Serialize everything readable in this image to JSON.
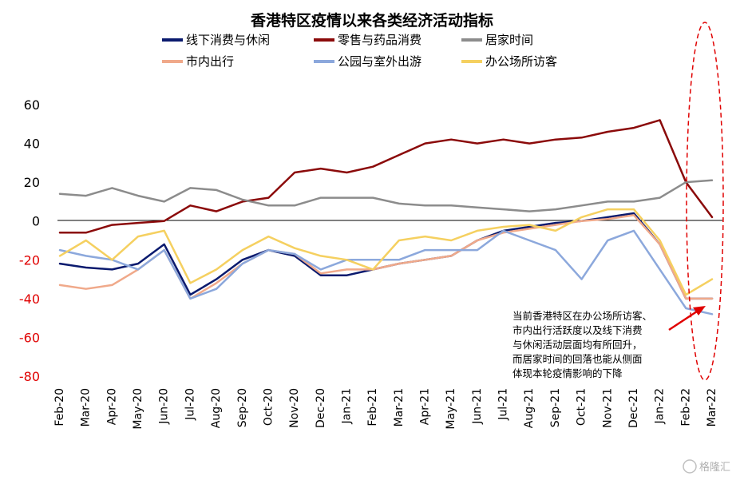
{
  "chart_data": {
    "type": "line",
    "title": "香港特区疫情以来各类经济活动指标",
    "ylim": [
      -80,
      60
    ],
    "yticks": [
      60,
      40,
      20,
      0,
      -20,
      -40,
      -60,
      -80
    ],
    "xticks": [
      "Feb-20",
      "Mar-20",
      "Apr-20",
      "May-20",
      "Jun-20",
      "Jul-20",
      "Aug-20",
      "Sep-20",
      "Oct-20",
      "Nov-20",
      "Dec-20",
      "Jan-21",
      "Feb-21",
      "Mar-21",
      "Apr-21",
      "May-21",
      "Jun-21",
      "Jul-21",
      "Aug-21",
      "Sep-21",
      "Oct-21",
      "Nov-21",
      "Dec-21",
      "Jan-22",
      "Feb-22",
      "Mar-22"
    ],
    "grid": false,
    "legend_position": "top",
    "x": [
      "Feb-20",
      "Mar-20",
      "Apr-20",
      "May-20",
      "Jun-20",
      "Jul-20",
      "Aug-20",
      "Sep-20",
      "Oct-20",
      "Nov-20",
      "Dec-20",
      "Jan-21",
      "Feb-21",
      "Mar-21",
      "Apr-21",
      "May-21",
      "Jun-21",
      "Jul-21",
      "Aug-21",
      "Sep-21",
      "Oct-21",
      "Nov-21",
      "Dec-21",
      "Jan-22",
      "Feb-22",
      "Mar-22"
    ],
    "series": [
      {
        "name": "线下消费与休闲",
        "color": "#0a1a6e",
        "values": [
          -22,
          -24,
          -25,
          -22,
          -12,
          -38,
          -30,
          -20,
          -15,
          -18,
          -28,
          -28,
          -25,
          -22,
          -20,
          -18,
          -10,
          -5,
          -3,
          -1,
          0,
          2,
          4,
          -12,
          -40,
          -40
        ]
      },
      {
        "name": "零售与药品消费",
        "color": "#8b0a0a",
        "values": [
          -6,
          -6,
          -2,
          -1,
          0,
          8,
          5,
          10,
          12,
          25,
          27,
          25,
          28,
          34,
          40,
          42,
          40,
          42,
          40,
          42,
          43,
          46,
          48,
          52,
          20,
          2
        ]
      },
      {
        "name": "居家时间",
        "color": "#8c8c8c",
        "values": [
          14,
          13,
          17,
          13,
          10,
          17,
          16,
          11,
          8,
          8,
          12,
          12,
          12,
          9,
          8,
          8,
          7,
          6,
          5,
          6,
          8,
          10,
          10,
          12,
          20,
          21
        ]
      },
      {
        "name": "市内出行",
        "color": "#f0a98a",
        "values": [
          -33,
          -35,
          -33,
          -25,
          -15,
          -40,
          -32,
          -22,
          -15,
          -17,
          -27,
          -25,
          -25,
          -22,
          -20,
          -18,
          -10,
          -6,
          -4,
          -2,
          0,
          1,
          3,
          -12,
          -40,
          -40
        ]
      },
      {
        "name": "公园与室外出游",
        "color": "#8ca8dc",
        "values": [
          -15,
          -18,
          -20,
          -25,
          -15,
          -40,
          -35,
          -22,
          -15,
          -17,
          -25,
          -20,
          -20,
          -20,
          -15,
          -15,
          -15,
          -5,
          -10,
          -15,
          -30,
          -10,
          -5,
          -25,
          -45,
          -48
        ]
      },
      {
        "name": "办公场所访客",
        "color": "#f5d060",
        "values": [
          -18,
          -10,
          -20,
          -8,
          -5,
          -32,
          -25,
          -15,
          -8,
          -14,
          -18,
          -20,
          -25,
          -10,
          -8,
          -10,
          -5,
          -3,
          -2,
          -5,
          2,
          6,
          6,
          -10,
          -38,
          -30
        ]
      }
    ],
    "annotation": {
      "lines": [
        "当前香港特区在办公场所访客、",
        "市内出行活跃度以及线下消费",
        "与休闲活动层面均有所回升，",
        "而居家时间的回落也能从侧面",
        "体现本轮疫情影响的下降"
      ]
    }
  },
  "watermark": "格隆汇"
}
